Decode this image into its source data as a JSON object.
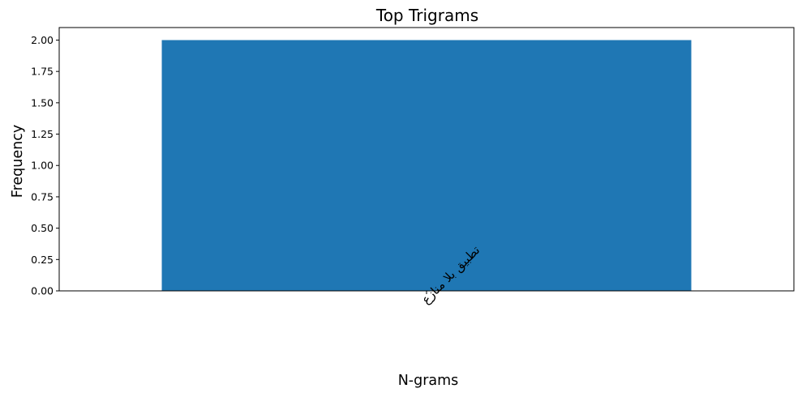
{
  "chart_data": {
    "type": "bar",
    "title": "Top Trigrams",
    "xlabel": "N-grams",
    "ylabel": "Frequency",
    "categories": [
      "تطبيق بلا منازع"
    ],
    "values": [
      2
    ],
    "ylim": [
      0,
      2.1
    ],
    "yticks": [
      "0.00",
      "0.25",
      "0.50",
      "0.75",
      "1.00",
      "1.25",
      "1.50",
      "1.75",
      "2.00"
    ],
    "grid": false,
    "legend": "none",
    "colors": {
      "bar": "#1f77b4",
      "axis": "#000000",
      "background": "#ffffff"
    }
  }
}
